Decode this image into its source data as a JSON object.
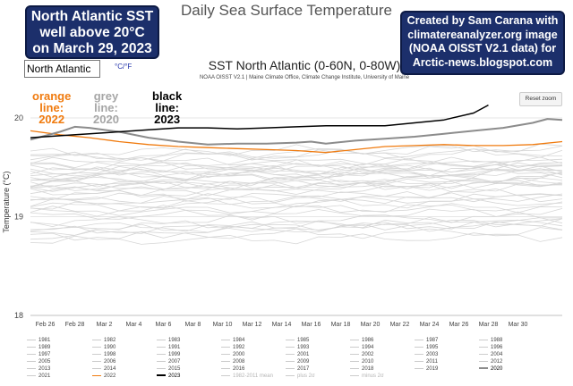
{
  "page_title": "Daily Sea Surface Temperature",
  "annotation_left": {
    "lines": [
      "North Atlantic SST",
      "well above 20°C",
      "on March 29, 2023"
    ]
  },
  "annotation_right": {
    "lines": [
      "Created by Sam Carana with",
      "climatereanalyzer.org image",
      "(NOAA OISST V2.1 data) for",
      "Arctic-news.blogspot.com"
    ]
  },
  "controls": {
    "region_label": "North Atlantic",
    "unit_toggle": "°C/°F",
    "reset_zoom": "Reset zoom"
  },
  "line_labels": {
    "orange": [
      "orange",
      "line:",
      "2022"
    ],
    "grey": [
      "grey",
      "line:",
      "2020"
    ],
    "black": [
      "black",
      "line:",
      "2023"
    ]
  },
  "colors": {
    "y2022": "#f07b0f",
    "y2020": "#8c8c8c",
    "y2023": "#000000",
    "background_years": "#d6d6d6"
  },
  "chart_data": {
    "type": "line",
    "title": "SST North Atlantic (0-60N, 0-80W)",
    "subtitle": "NOAA OISST V2.1 | Maine Climate Office, Climate Change Institute, University of Maine",
    "xlabel": "",
    "ylabel": "Temperature (°C)",
    "xlim": [
      0,
      36
    ],
    "ylim": [
      18,
      20.2
    ],
    "y_ticks": [
      18,
      19,
      20
    ],
    "x_tick_labels": [
      {
        "day": 1,
        "label": "Feb 26"
      },
      {
        "day": 3,
        "label": "Feb 28"
      },
      {
        "day": 5,
        "label": "Mar 2"
      },
      {
        "day": 7,
        "label": "Mar 4"
      },
      {
        "day": 9,
        "label": "Mar 6"
      },
      {
        "day": 11,
        "label": "Mar 8"
      },
      {
        "day": 13,
        "label": "Mar 10"
      },
      {
        "day": 15,
        "label": "Mar 12"
      },
      {
        "day": 17,
        "label": "Mar 14"
      },
      {
        "day": 19,
        "label": "Mar 16"
      },
      {
        "day": 21,
        "label": "Mar 18"
      },
      {
        "day": 23,
        "label": "Mar 20"
      },
      {
        "day": 25,
        "label": "Mar 22"
      },
      {
        "day": 27,
        "label": "Mar 24"
      },
      {
        "day": 29,
        "label": "Mar 26"
      },
      {
        "day": 31,
        "label": "Mar 28"
      },
      {
        "day": 33,
        "label": "Mar 30"
      }
    ],
    "highlight_series": [
      {
        "name": "2022",
        "color": "#f07b0f",
        "width": 1.3,
        "x": [
          0,
          2,
          4,
          6,
          8,
          10,
          12,
          14,
          16,
          18,
          20,
          22,
          24,
          26,
          28,
          30,
          32,
          34,
          36
        ],
        "y": [
          19.87,
          19.83,
          19.8,
          19.76,
          19.73,
          19.71,
          19.7,
          19.69,
          19.68,
          19.67,
          19.65,
          19.68,
          19.71,
          19.72,
          19.73,
          19.72,
          19.72,
          19.73,
          19.76
        ]
      },
      {
        "name": "2020",
        "color": "#8c8c8c",
        "width": 2,
        "x": [
          0,
          2,
          3,
          4,
          6,
          8,
          9,
          10,
          12,
          14,
          16,
          18,
          19,
          20,
          22,
          24,
          26,
          28,
          30,
          32,
          34,
          35,
          36
        ],
        "y": [
          19.78,
          19.86,
          19.91,
          19.9,
          19.86,
          19.8,
          19.78,
          19.76,
          19.73,
          19.74,
          19.74,
          19.75,
          19.76,
          19.74,
          19.77,
          19.79,
          19.81,
          19.84,
          19.87,
          19.9,
          19.95,
          19.99,
          19.98
        ]
      },
      {
        "name": "2023",
        "color": "#000000",
        "width": 1.5,
        "x": [
          0,
          2,
          4,
          6,
          8,
          10,
          12,
          14,
          16,
          18,
          20,
          22,
          24,
          26,
          28,
          30,
          31
        ],
        "y": [
          19.8,
          19.82,
          19.84,
          19.86,
          19.88,
          19.9,
          19.9,
          19.89,
          19.9,
          19.91,
          19.92,
          19.92,
          19.92,
          19.95,
          19.98,
          20.05,
          20.13
        ]
      }
    ],
    "background_series": [
      {
        "name": "1981",
        "start": 19.1,
        "end": 19.15
      },
      {
        "name": "1982",
        "start": 18.9,
        "end": 18.95
      },
      {
        "name": "1983",
        "start": 19.25,
        "end": 19.3
      },
      {
        "name": "1984",
        "start": 18.95,
        "end": 19.0
      },
      {
        "name": "1985",
        "start": 18.75,
        "end": 18.8
      },
      {
        "name": "1986",
        "start": 18.85,
        "end": 18.95
      },
      {
        "name": "1987",
        "start": 19.05,
        "end": 19.1
      },
      {
        "name": "1988",
        "start": 19.2,
        "end": 19.2
      },
      {
        "name": "1989",
        "start": 18.9,
        "end": 18.9
      },
      {
        "name": "1990",
        "start": 19.15,
        "end": 19.25
      },
      {
        "name": "1991",
        "start": 19.05,
        "end": 19.1
      },
      {
        "name": "1992",
        "start": 18.8,
        "end": 18.85
      },
      {
        "name": "1993",
        "start": 18.85,
        "end": 18.95
      },
      {
        "name": "1994",
        "start": 18.8,
        "end": 18.95
      },
      {
        "name": "1995",
        "start": 19.3,
        "end": 19.35
      },
      {
        "name": "1996",
        "start": 19.0,
        "end": 19.05
      },
      {
        "name": "1997",
        "start": 19.3,
        "end": 19.4
      },
      {
        "name": "1998",
        "start": 19.45,
        "end": 19.5
      },
      {
        "name": "1999",
        "start": 19.2,
        "end": 19.35
      },
      {
        "name": "2000",
        "start": 19.25,
        "end": 19.35
      },
      {
        "name": "2001",
        "start": 19.15,
        "end": 19.2
      },
      {
        "name": "2002",
        "start": 19.3,
        "end": 19.35
      },
      {
        "name": "2003",
        "start": 19.4,
        "end": 19.45
      },
      {
        "name": "2004",
        "start": 19.35,
        "end": 19.45
      },
      {
        "name": "2005",
        "start": 19.45,
        "end": 19.55
      },
      {
        "name": "2006",
        "start": 19.5,
        "end": 19.5
      },
      {
        "name": "2007",
        "start": 19.45,
        "end": 19.45
      },
      {
        "name": "2008",
        "start": 19.3,
        "end": 19.35
      },
      {
        "name": "2009",
        "start": 19.1,
        "end": 19.2
      },
      {
        "name": "2010",
        "start": 19.6,
        "end": 19.65
      },
      {
        "name": "2011",
        "start": 19.35,
        "end": 19.4
      },
      {
        "name": "2012",
        "start": 19.5,
        "end": 19.55
      },
      {
        "name": "2013",
        "start": 19.4,
        "end": 19.45
      },
      {
        "name": "2014",
        "start": 19.35,
        "end": 19.5
      },
      {
        "name": "2015",
        "start": 19.55,
        "end": 19.55
      },
      {
        "name": "2016",
        "start": 19.65,
        "end": 19.7
      },
      {
        "name": "2017",
        "start": 19.55,
        "end": 19.55
      },
      {
        "name": "2018",
        "start": 19.45,
        "end": 19.5
      },
      {
        "name": "2019",
        "start": 19.6,
        "end": 19.65
      },
      {
        "name": "2021",
        "start": 19.6,
        "end": 19.7
      }
    ],
    "legend": [
      "1981",
      "1982",
      "1983",
      "1984",
      "1985",
      "1986",
      "1987",
      "1988",
      "1989",
      "1990",
      "1991",
      "1992",
      "1993",
      "1994",
      "1995",
      "1996",
      "1997",
      "1998",
      "1999",
      "2000",
      "2001",
      "2002",
      "2003",
      "2004",
      "2005",
      "2006",
      "2007",
      "2008",
      "2009",
      "2010",
      "2011",
      "2012",
      "2013",
      "2014",
      "2015",
      "2016",
      "2017",
      "2018",
      "2019",
      "2020",
      "2021",
      "2022",
      "2023",
      "1982-2011 mean",
      "plus 2σ",
      "minus 2σ"
    ]
  }
}
